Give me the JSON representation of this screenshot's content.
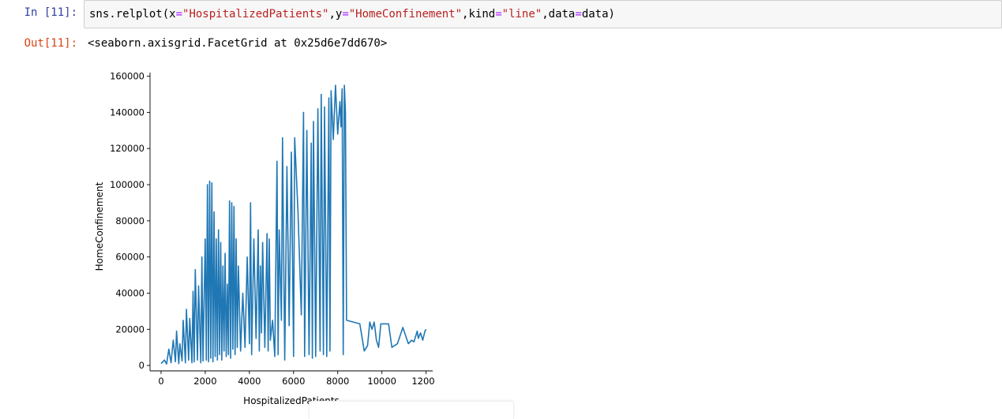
{
  "cell": {
    "in_prompt": "In [11]:",
    "out_prompt": "Out[11]:",
    "code": {
      "fn": "sns.relplot(x",
      "eq1": "=",
      "x_str": "\"HospitalizedPatients\"",
      "y_lbl": ",y",
      "eq2": "=",
      "y_str": "\"HomeConfinement\"",
      "kind_lbl": ",kind",
      "eq3": "=",
      "kind_str": "\"line\"",
      "data_lbl": ",data",
      "eq4": "=",
      "data_end": "data)"
    },
    "output": "<seaborn.axisgrid.FacetGrid at 0x25d6e7dd670>"
  },
  "chart_data": {
    "type": "line",
    "xlabel": "HospitalizedPatients",
    "ylabel": "HomeConfinement",
    "xlim": [
      -500,
      12300
    ],
    "ylim": [
      -3000,
      162000
    ],
    "xticks": [
      0,
      2000,
      4000,
      6000,
      8000,
      10000,
      12000
    ],
    "yticks": [
      0,
      20000,
      40000,
      60000,
      80000,
      100000,
      120000,
      140000,
      160000
    ],
    "grid": false,
    "series": [
      {
        "color": "#1f77b4",
        "points": [
          [
            0,
            1000
          ],
          [
            150,
            3000
          ],
          [
            250,
            800
          ],
          [
            350,
            9000
          ],
          [
            450,
            1500
          ],
          [
            550,
            14000
          ],
          [
            650,
            2000
          ],
          [
            700,
            19000
          ],
          [
            800,
            1000
          ],
          [
            850,
            12000
          ],
          [
            950,
            2500
          ],
          [
            1000,
            25000
          ],
          [
            1100,
            1500
          ],
          [
            1150,
            31000
          ],
          [
            1250,
            3000
          ],
          [
            1300,
            26000
          ],
          [
            1400,
            1500
          ],
          [
            1450,
            41000
          ],
          [
            1500,
            2000
          ],
          [
            1550,
            53000
          ],
          [
            1650,
            3000
          ],
          [
            1700,
            44000
          ],
          [
            1800,
            1500
          ],
          [
            1850,
            60000
          ],
          [
            1900,
            2500
          ],
          [
            2000,
            70000
          ],
          [
            2050,
            3000
          ],
          [
            2100,
            100000
          ],
          [
            2150,
            2000
          ],
          [
            2200,
            102000
          ],
          [
            2250,
            4000
          ],
          [
            2300,
            101000
          ],
          [
            2350,
            2000
          ],
          [
            2400,
            85000
          ],
          [
            2450,
            5000
          ],
          [
            2500,
            70000
          ],
          [
            2550,
            3000
          ],
          [
            2600,
            75000
          ],
          [
            2650,
            6000
          ],
          [
            2700,
            68000
          ],
          [
            2750,
            3000
          ],
          [
            2800,
            55000
          ],
          [
            2850,
            8000
          ],
          [
            2900,
            62000
          ],
          [
            2950,
            5000
          ],
          [
            3000,
            45000
          ],
          [
            3050,
            6000
          ],
          [
            3100,
            91000
          ],
          [
            3150,
            4000
          ],
          [
            3200,
            90000
          ],
          [
            3250,
            9000
          ],
          [
            3300,
            88000
          ],
          [
            3350,
            6000
          ],
          [
            3400,
            70000
          ],
          [
            3450,
            10000
          ],
          [
            3500,
            55000
          ],
          [
            3600,
            8000
          ],
          [
            3700,
            40000
          ],
          [
            3800,
            10000
          ],
          [
            3900,
            60000
          ],
          [
            4000,
            12000
          ],
          [
            4050,
            90000
          ],
          [
            4100,
            6000
          ],
          [
            4200,
            70000
          ],
          [
            4300,
            15000
          ],
          [
            4400,
            75000
          ],
          [
            4450,
            8000
          ],
          [
            4500,
            55000
          ],
          [
            4550,
            18000
          ],
          [
            4600,
            68000
          ],
          [
            4700,
            10000
          ],
          [
            4800,
            73000
          ],
          [
            4850,
            8000
          ],
          [
            4900,
            70000
          ],
          [
            4950,
            14000
          ],
          [
            5050,
            25000
          ],
          [
            5150,
            5000
          ],
          [
            5250,
            113000
          ],
          [
            5300,
            6000
          ],
          [
            5350,
            75000
          ],
          [
            5450,
            25000
          ],
          [
            5500,
            126000
          ],
          [
            5600,
            3000
          ],
          [
            5700,
            110000
          ],
          [
            5800,
            22000
          ],
          [
            5900,
            118000
          ],
          [
            6000,
            5000
          ],
          [
            6050,
            126000
          ],
          [
            6200,
            85000
          ],
          [
            6350,
            28000
          ],
          [
            6450,
            140000
          ],
          [
            6500,
            5000
          ],
          [
            6600,
            130000
          ],
          [
            6700,
            6000
          ],
          [
            6800,
            123000
          ],
          [
            6850,
            4000
          ],
          [
            6900,
            135000
          ],
          [
            7000,
            5000
          ],
          [
            7100,
            142000
          ],
          [
            7200,
            8000
          ],
          [
            7250,
            150000
          ],
          [
            7350,
            6000
          ],
          [
            7400,
            143000
          ],
          [
            7500,
            5000
          ],
          [
            7600,
            148000
          ],
          [
            7650,
            8000
          ],
          [
            7700,
            152000
          ],
          [
            7800,
            125000
          ],
          [
            7900,
            155000
          ],
          [
            8000,
            128000
          ],
          [
            8100,
            146000
          ],
          [
            8150,
            132000
          ],
          [
            8200,
            153000
          ],
          [
            8250,
            6000
          ],
          [
            8300,
            155000
          ],
          [
            8350,
            140000
          ],
          [
            8400,
            25000
          ],
          [
            8700,
            24000
          ],
          [
            9000,
            23000
          ],
          [
            9200,
            8000
          ],
          [
            9350,
            11000
          ],
          [
            9450,
            24000
          ],
          [
            9550,
            20000
          ],
          [
            9650,
            24000
          ],
          [
            9750,
            14000
          ],
          [
            9850,
            10000
          ],
          [
            9950,
            23000
          ],
          [
            10300,
            23000
          ],
          [
            10450,
            10000
          ],
          [
            10700,
            12000
          ],
          [
            10950,
            21000
          ],
          [
            11200,
            12000
          ],
          [
            11350,
            14000
          ],
          [
            11450,
            13000
          ],
          [
            11600,
            19000
          ],
          [
            11650,
            15000
          ],
          [
            11750,
            18000
          ],
          [
            11850,
            14000
          ],
          [
            11950,
            19000
          ],
          [
            12000,
            20000
          ]
        ]
      }
    ]
  }
}
